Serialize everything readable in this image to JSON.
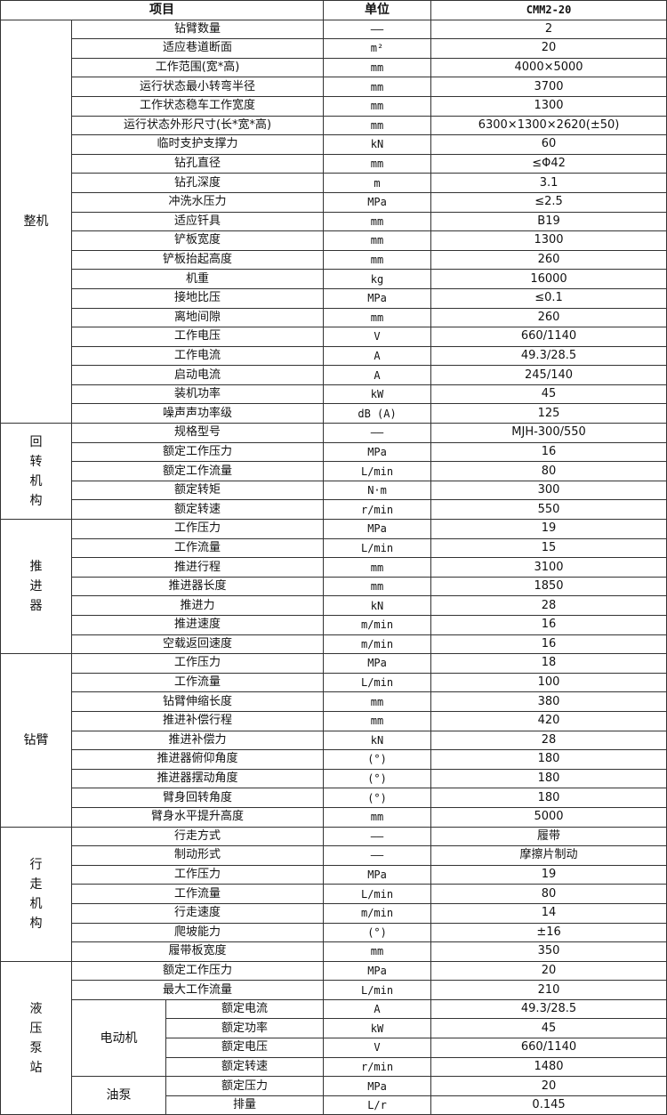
{
  "header": {
    "item": "项目",
    "unit": "单位",
    "model": "CMM2-20"
  },
  "groups": [
    {
      "name": "整机",
      "rows": [
        [
          "钻臂数量",
          "——",
          "2"
        ],
        [
          "适应巷道断面",
          "m²",
          "20"
        ],
        [
          "工作范围(宽*高)",
          "mm",
          "4000×5000"
        ],
        [
          "运行状态最小转弯半径",
          "mm",
          "3700"
        ],
        [
          "工作状态稳车工作宽度",
          "mm",
          "1300"
        ],
        [
          "运行状态外形尺寸(长*宽*高)",
          "mm",
          "6300×1300×2620(±50)"
        ],
        [
          "临时支护支撑力",
          "kN",
          "60"
        ],
        [
          "钻孔直径",
          "mm",
          "≤Φ42"
        ],
        [
          "钻孔深度",
          "m",
          "3.1"
        ],
        [
          "冲洗水压力",
          "MPa",
          "≤2.5"
        ],
        [
          "适应钎具",
          "mm",
          "B19"
        ],
        [
          "铲板宽度",
          "mm",
          "1300"
        ],
        [
          "铲板抬起高度",
          "mm",
          "260"
        ],
        [
          "机重",
          "kg",
          "16000"
        ],
        [
          "接地比压",
          "MPa",
          "≤0.1"
        ],
        [
          "离地间隙",
          "mm",
          "260"
        ],
        [
          "工作电压",
          "V",
          "660/1140"
        ],
        [
          "工作电流",
          "A",
          "49.3/28.5"
        ],
        [
          "启动电流",
          "A",
          "245/140"
        ],
        [
          "装机功率",
          "kW",
          "45"
        ],
        [
          "噪声声功率级",
          "dB (A)",
          "125"
        ]
      ]
    },
    {
      "name": "回转机构",
      "rows": [
        [
          "规格型号",
          "——",
          "MJH-300/550"
        ],
        [
          "额定工作压力",
          "MPa",
          "16"
        ],
        [
          "额定工作流量",
          "L/min",
          "80"
        ],
        [
          "额定转矩",
          "N·m",
          "300"
        ],
        [
          "额定转速",
          "r/min",
          "550"
        ]
      ]
    },
    {
      "name": "推进器",
      "rows": [
        [
          "工作压力",
          "MPa",
          "19"
        ],
        [
          "工作流量",
          "L/min",
          "15"
        ],
        [
          "推进行程",
          "mm",
          "3100"
        ],
        [
          "推进器长度",
          "mm",
          "1850"
        ],
        [
          "推进力",
          "kN",
          "28"
        ],
        [
          "推进速度",
          "m/min",
          "16"
        ],
        [
          "空载返回速度",
          "m/min",
          "16"
        ]
      ]
    },
    {
      "name": "钻臂",
      "rows": [
        [
          "工作压力",
          "MPa",
          "18"
        ],
        [
          "工作流量",
          "L/min",
          "100"
        ],
        [
          "钻臂伸缩长度",
          "mm",
          "380"
        ],
        [
          "推进补偿行程",
          "mm",
          "420"
        ],
        [
          "推进补偿力",
          "kN",
          "28"
        ],
        [
          "推进器俯仰角度",
          "(°)",
          "180"
        ],
        [
          "推进器摆动角度",
          "(°)",
          "180"
        ],
        [
          "臂身回转角度",
          "(°)",
          "180"
        ],
        [
          "臂身水平提升高度",
          "mm",
          "5000"
        ]
      ]
    },
    {
      "name": "行走机构",
      "rows": [
        [
          "行走方式",
          "——",
          "履带"
        ],
        [
          "制动形式",
          "——",
          "摩擦片制动"
        ],
        [
          "工作压力",
          "MPa",
          "19"
        ],
        [
          "工作流量",
          "L/min",
          "80"
        ],
        [
          "行走速度",
          "m/min",
          "14"
        ],
        [
          "爬坡能力",
          "(°)",
          "±16"
        ],
        [
          "履带板宽度",
          "mm",
          "350"
        ]
      ]
    }
  ],
  "pump_station": {
    "name": "液压泵站",
    "rows": [
      [
        "额定工作压力",
        "MPa",
        "20"
      ],
      [
        "最大工作流量",
        "L/min",
        "210"
      ]
    ],
    "subgroups": [
      {
        "name": "电动机",
        "rows": [
          [
            "额定电流",
            "A",
            "49.3/28.5"
          ],
          [
            "额定功率",
            "kW",
            "45"
          ],
          [
            "额定电压",
            "V",
            "660/1140"
          ],
          [
            "额定转速",
            "r/min",
            "1480"
          ]
        ]
      },
      {
        "name": "油泵",
        "rows": [
          [
            "额定压力",
            "MPa",
            "20"
          ],
          [
            "排量",
            "L/r",
            "0.145"
          ]
        ]
      }
    ]
  }
}
